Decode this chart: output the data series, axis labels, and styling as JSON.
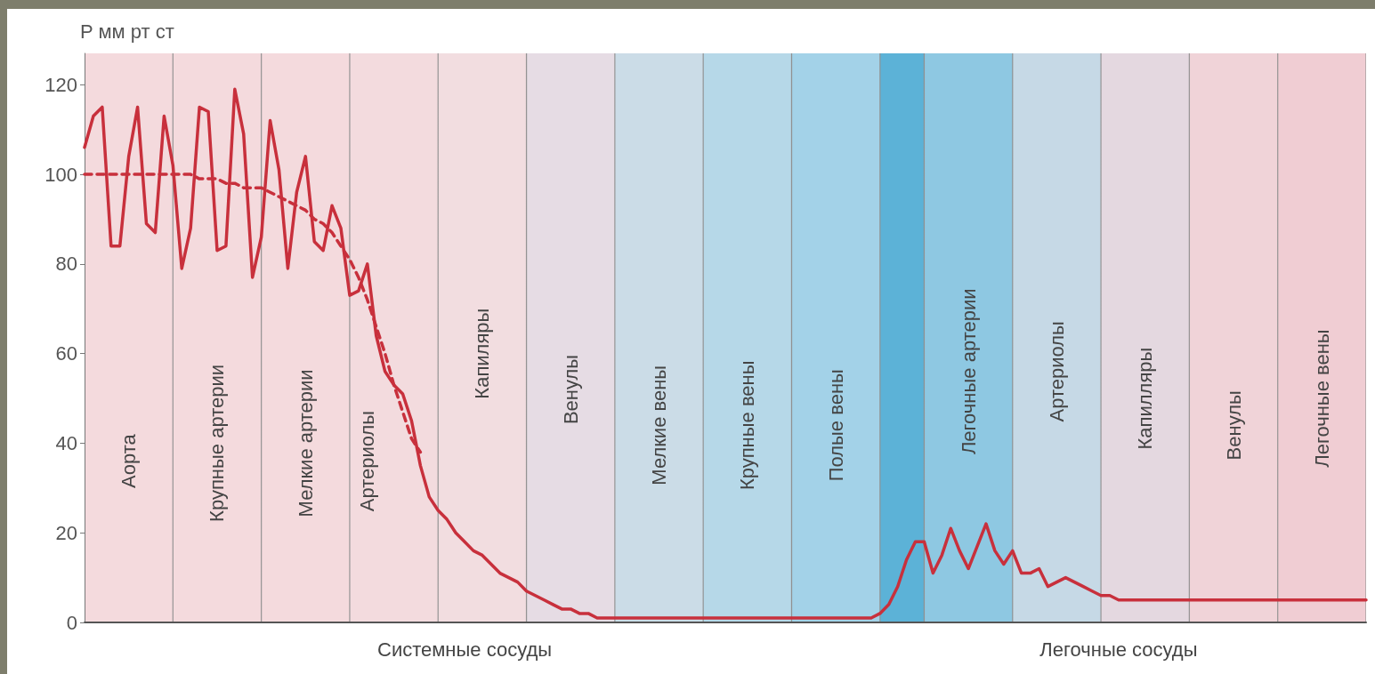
{
  "chart_data": {
    "type": "line",
    "ylabel": "P мм рт ст",
    "categories": [
      null,
      null,
      null,
      null,
      null,
      null,
      null,
      null,
      null,
      null,
      null,
      null,
      null,
      null,
      null,
      null,
      null,
      null,
      null,
      null,
      null,
      null,
      null,
      null,
      null,
      null,
      null,
      null,
      null,
      null,
      null,
      null,
      null,
      null,
      null,
      null,
      null,
      null,
      null,
      null,
      null,
      null,
      null,
      null,
      null,
      null,
      null,
      null,
      null,
      null,
      null,
      null,
      null,
      null,
      null,
      null,
      null,
      null,
      null,
      null,
      null,
      null,
      null,
      null,
      null,
      null,
      null,
      null,
      null,
      null,
      null,
      null,
      null,
      null,
      null,
      null,
      null,
      null,
      null,
      null,
      null,
      null,
      null,
      null,
      null,
      null,
      null,
      null,
      null,
      null,
      null,
      null,
      null,
      null,
      null,
      null,
      null,
      null,
      null,
      null,
      null,
      null,
      null,
      null,
      null,
      null,
      null,
      null,
      null,
      null,
      null,
      null,
      null,
      null,
      null,
      null,
      null,
      null,
      null,
      null,
      null,
      null,
      null,
      null,
      null,
      null,
      null,
      null,
      null,
      null,
      null,
      null,
      null,
      null,
      null,
      null,
      null,
      null,
      null,
      null,
      null,
      null,
      null,
      null,
      null,
      null
    ],
    "ylim": [
      0,
      127
    ],
    "yticks": [
      0,
      20,
      40,
      60,
      80,
      100,
      120
    ],
    "tick_labels": "y",
    "grid": false,
    "marker": "none",
    "series": [
      {
        "color": "#c8303c",
        "line_style": "solid",
        "values": [
          106,
          113,
          115,
          84,
          84,
          104,
          115,
          89,
          87,
          113,
          102,
          79,
          88,
          115,
          114,
          83,
          84,
          119,
          109,
          77,
          86,
          112,
          101,
          79,
          96,
          104,
          85,
          83,
          93,
          88,
          73,
          74,
          80,
          64,
          56,
          53,
          51,
          45,
          35,
          28,
          25,
          23,
          20,
          18,
          16,
          15,
          13,
          11,
          10,
          9,
          7,
          6,
          5,
          4,
          3,
          3,
          2,
          2,
          1,
          1,
          1,
          1,
          1,
          1,
          1,
          1,
          1,
          1,
          1,
          1,
          1,
          1,
          1,
          1,
          1,
          1,
          1,
          1,
          1,
          1,
          1,
          1,
          1,
          1,
          1,
          1,
          1,
          1,
          1,
          1,
          2,
          4,
          8,
          14,
          18,
          18,
          11,
          15,
          21,
          16,
          12,
          17,
          22,
          16,
          13,
          16,
          11,
          11,
          12,
          8,
          9,
          10,
          9,
          8,
          7,
          6,
          6,
          5,
          5,
          5,
          5,
          5,
          5,
          5,
          5,
          5,
          5,
          5,
          5,
          5,
          5,
          5,
          5,
          5,
          5,
          5,
          5,
          5,
          5,
          5,
          5,
          5,
          5,
          5,
          5,
          5
        ]
      },
      {
        "color": "#c8303c",
        "line_style": "dashed",
        "values": [
          100,
          100,
          100,
          100,
          100,
          100,
          100,
          100,
          100,
          100,
          100,
          100,
          100,
          99,
          99,
          99,
          98,
          98,
          97,
          97,
          97,
          96,
          95,
          94,
          93,
          92,
          90,
          89,
          87,
          84,
          81,
          77,
          72,
          66,
          60,
          53,
          47,
          41,
          38,
          null,
          null,
          null,
          null,
          null,
          null,
          null,
          null,
          null,
          null,
          null,
          null,
          null,
          null,
          null,
          null,
          null,
          null,
          null,
          null,
          null,
          null,
          null,
          null,
          null,
          null,
          null,
          null,
          null,
          null,
          null,
          null,
          null,
          null,
          null,
          null,
          null,
          null,
          null,
          null,
          null,
          null,
          null,
          null,
          null,
          null,
          null,
          null,
          null,
          null,
          null,
          null,
          null,
          null,
          null,
          null,
          null,
          null,
          null,
          null,
          null,
          null,
          null,
          null,
          null,
          null,
          null,
          null,
          null,
          null,
          null,
          null,
          null,
          null,
          null,
          null,
          null,
          null,
          null,
          null,
          null,
          null,
          null,
          null,
          null,
          null,
          null,
          null,
          null,
          null,
          null,
          null,
          null,
          null,
          null,
          null,
          null,
          null,
          null,
          null,
          null,
          null,
          null,
          null,
          null,
          null,
          null
        ]
      }
    ],
    "annotations": [
      "Аорта",
      "Крупные артерии",
      "Мелкие артерии",
      "Артериолы",
      "Капиляры",
      "Венулы",
      "Мелкие вены",
      "Крупные вены",
      "Полые вены",
      "Легочные артерии",
      "Артериолы",
      "Капилляры",
      "Венулы",
      "Легочные вены",
      "Системные сосуды",
      "Легочные сосуды"
    ]
  }
}
